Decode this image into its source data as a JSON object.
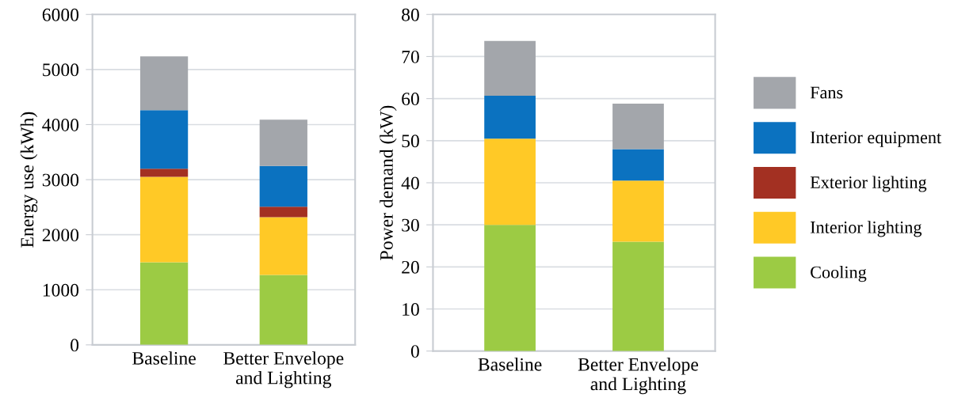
{
  "chart_data": [
    {
      "type": "bar",
      "stacked": true,
      "ylabel": "Energy use (kWh)",
      "categories": [
        "Baseline",
        "Better Envelope\nand Lighting"
      ],
      "ylim": [
        0,
        6000
      ],
      "yticks": [
        0,
        1000,
        2000,
        3000,
        4000,
        5000,
        6000
      ],
      "grid": "y",
      "series": [
        {
          "color": "#9ccb44",
          "values": [
            1500,
            1270
          ]
        },
        {
          "color": "#ffc926",
          "values": [
            1550,
            1050
          ]
        },
        {
          "color": "#a33022",
          "values": [
            150,
            190
          ]
        },
        {
          "color": "#0b72c0",
          "values": [
            1060,
            740
          ]
        },
        {
          "color": "#a3a6ab",
          "values": [
            980,
            840
          ]
        }
      ]
    },
    {
      "type": "bar",
      "stacked": true,
      "ylabel": "Power demand (kW)",
      "categories": [
        "Baseline",
        "Better Envelope\nand Lighting"
      ],
      "ylim": [
        0,
        80
      ],
      "yticks": [
        0,
        10,
        20,
        30,
        40,
        50,
        60,
        70,
        80
      ],
      "grid": "y",
      "legend": "right",
      "series": [
        {
          "name": "Cooling",
          "color": "#9ccb44",
          "values": [
            30,
            26
          ]
        },
        {
          "name": "Interior lighting",
          "color": "#ffc926",
          "values": [
            20.5,
            14.5
          ]
        },
        {
          "name": "Exterior lighting",
          "color": "#a33022",
          "values": [
            0,
            0
          ]
        },
        {
          "name": "Interior equipment",
          "color": "#0b72c0",
          "values": [
            10.2,
            7.5
          ]
        },
        {
          "name": "Fans",
          "color": "#a3a6ab",
          "values": [
            13,
            10.8
          ]
        }
      ]
    }
  ]
}
